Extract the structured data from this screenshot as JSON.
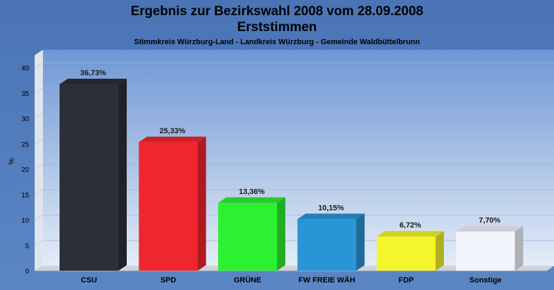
{
  "chart_data": {
    "type": "bar",
    "title": "Ergebnis zur Bezirkswahl 2008 vom 28.09.2008",
    "title2": "Erststimmen",
    "subtitle": "Stimmkreis Würzburg-Land - Landkreis Würzburg - Gemeinde Waldbüttelbrunn",
    "ylabel": "%",
    "xlabel": "",
    "ylim": [
      0,
      40
    ],
    "yticks": [
      "0",
      "5",
      "10",
      "15",
      "20",
      "25",
      "30",
      "35",
      "40"
    ],
    "grid": true,
    "categories": [
      "CSU",
      "SPD",
      "GRÜNE",
      "FW FREIE WÄH",
      "FDP",
      "Sonstige"
    ],
    "values": [
      36.73,
      25.33,
      13.36,
      10.15,
      6.72,
      7.7
    ],
    "value_labels": [
      "36,73%",
      "25,33%",
      "13,36%",
      "10,15%",
      "6,72%",
      "7,70%"
    ],
    "colors": [
      "#2b2f38",
      "#f0262e",
      "#2ef032",
      "#2a95d6",
      "#f5f52c",
      "#f2f4fb"
    ]
  }
}
